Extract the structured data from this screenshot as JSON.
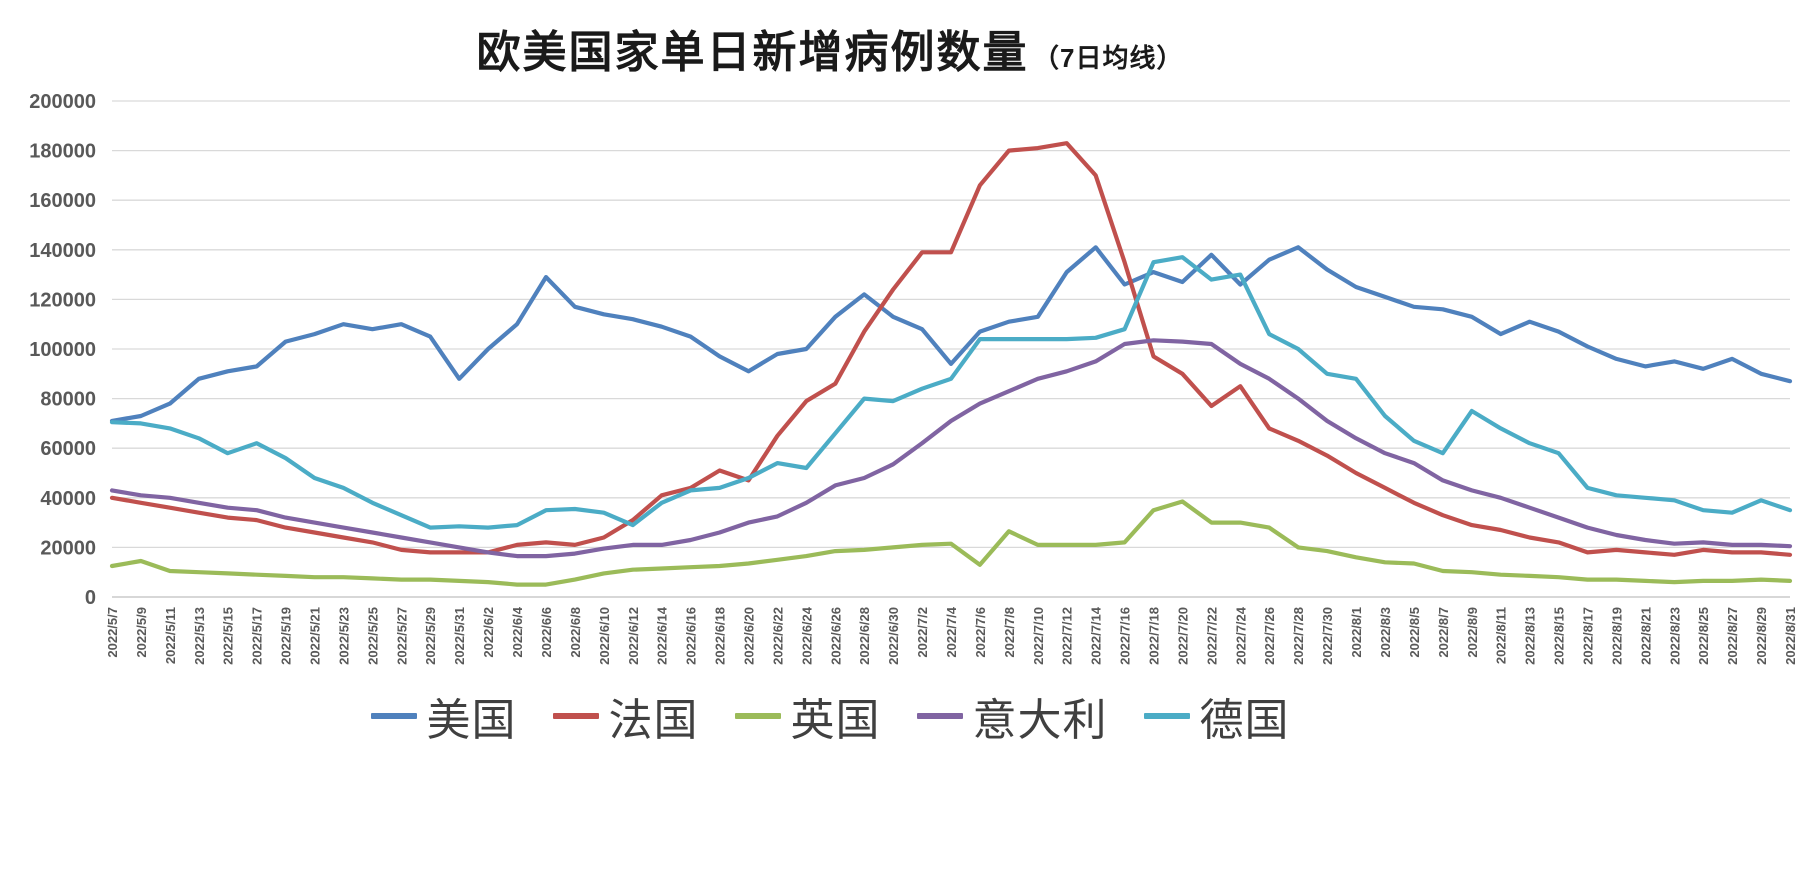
{
  "chart_data": {
    "type": "line",
    "title": "欧美国家单日新增病例数量",
    "subtitle": "（7日均线）",
    "ylim": [
      0,
      200000
    ],
    "ytick_step": 20000,
    "grid": true,
    "legend_position": "bottom",
    "gridline_color": "#D9D9D9",
    "axis_line_color": "#BFBFBF",
    "axis_label_color": "#595959",
    "categories": [
      "2022/5/7",
      "2022/5/9",
      "2022/5/11",
      "2022/5/13",
      "2022/5/15",
      "2022/5/17",
      "2022/5/19",
      "2022/5/21",
      "2022/5/23",
      "2022/5/25",
      "2022/5/27",
      "2022/5/29",
      "2022/5/31",
      "2022/6/2",
      "2022/6/4",
      "2022/6/6",
      "2022/6/8",
      "2022/6/10",
      "2022/6/12",
      "2022/6/14",
      "2022/6/16",
      "2022/6/18",
      "2022/6/20",
      "2022/6/22",
      "2022/6/24",
      "2022/6/26",
      "2022/6/28",
      "2022/6/30",
      "2022/7/2",
      "2022/7/4",
      "2022/7/6",
      "2022/7/8",
      "2022/7/10",
      "2022/7/12",
      "2022/7/14",
      "2022/7/16",
      "2022/7/18",
      "2022/7/20",
      "2022/7/22",
      "2022/7/24",
      "2022/7/26",
      "2022/7/28",
      "2022/7/30",
      "2022/8/1",
      "2022/8/3",
      "2022/8/5",
      "2022/8/7",
      "2022/8/9",
      "2022/8/11",
      "2022/8/13",
      "2022/8/15",
      "2022/8/17",
      "2022/8/19",
      "2022/8/21",
      "2022/8/23",
      "2022/8/25",
      "2022/8/27",
      "2022/8/29",
      "2022/8/31"
    ],
    "series": [
      {
        "name": "美国",
        "color": "#4F81BD",
        "values": [
          71000,
          73000,
          78000,
          88000,
          91000,
          93000,
          103000,
          106000,
          110000,
          108000,
          110000,
          105000,
          88000,
          100000,
          110000,
          129000,
          117000,
          114000,
          112000,
          109000,
          105000,
          97000,
          91000,
          98000,
          100000,
          113000,
          122000,
          113000,
          108000,
          94000,
          107000,
          111000,
          113000,
          131000,
          141000,
          126000,
          131000,
          127000,
          138000,
          126000,
          136000,
          141000,
          132000,
          125000,
          121000,
          117000,
          116000,
          113000,
          106000,
          111000,
          107000,
          101000,
          96000,
          93000,
          95000,
          92000,
          96000,
          90000,
          87000
        ]
      },
      {
        "name": "法国",
        "color": "#C0504D",
        "values": [
          40000,
          38000,
          36000,
          34000,
          32000,
          31000,
          28000,
          26000,
          24000,
          22000,
          19000,
          18000,
          18000,
          18000,
          21000,
          22000,
          21000,
          24000,
          31000,
          41000,
          44000,
          51000,
          47000,
          65000,
          79000,
          86000,
          107000,
          124000,
          139000,
          139000,
          166000,
          180000,
          181000,
          183000,
          170000,
          135000,
          97000,
          90000,
          77000,
          85000,
          68000,
          63000,
          57000,
          50000,
          44000,
          38000,
          33000,
          29000,
          27000,
          24000,
          22000,
          18000,
          19000,
          18000,
          17000,
          19000,
          18000,
          18000,
          17000
        ]
      },
      {
        "name": "英国",
        "color": "#9BBB59",
        "values": [
          12500,
          14500,
          10500,
          10000,
          9500,
          9000,
          8500,
          8000,
          8000,
          7500,
          7000,
          7000,
          6500,
          6000,
          5000,
          5000,
          7000,
          9500,
          11000,
          11500,
          12000,
          12500,
          13500,
          15000,
          16500,
          18500,
          19000,
          20000,
          21000,
          21500,
          13000,
          26500,
          21000,
          21000,
          21000,
          22000,
          35000,
          38500,
          30000,
          30000,
          28000,
          20000,
          18500,
          16000,
          14000,
          13500,
          10500,
          10000,
          9000,
          8500,
          8000,
          7000,
          7000,
          6500,
          6000,
          6500,
          6500,
          7000,
          6500
        ]
      },
      {
        "name": "意大利",
        "color": "#8064A2",
        "values": [
          43000,
          41000,
          40000,
          38000,
          36000,
          35000,
          32000,
          30000,
          28000,
          26000,
          24000,
          22000,
          20000,
          18000,
          16500,
          16500,
          17500,
          19500,
          21000,
          21000,
          23000,
          26000,
          30000,
          32500,
          38000,
          45000,
          48000,
          53500,
          62000,
          71000,
          78000,
          83000,
          88000,
          91000,
          95000,
          102000,
          103500,
          103000,
          102000,
          94000,
          88000,
          80000,
          71000,
          64000,
          58000,
          54000,
          47000,
          43000,
          40000,
          36000,
          32000,
          28000,
          25000,
          23000,
          21500,
          22000,
          21000,
          21000,
          20500
        ]
      },
      {
        "name": "德国",
        "color": "#4BACC6",
        "values": [
          70500,
          70000,
          68000,
          64000,
          58000,
          62000,
          56000,
          48000,
          44000,
          38000,
          33000,
          28000,
          28500,
          28000,
          29000,
          35000,
          35500,
          34000,
          29000,
          38000,
          43000,
          44000,
          48000,
          54000,
          52000,
          66000,
          80000,
          79000,
          84000,
          88000,
          104000,
          104000,
          104000,
          104000,
          104500,
          108000,
          135000,
          137000,
          128000,
          130000,
          106000,
          100000,
          90000,
          88000,
          73000,
          63000,
          58000,
          75000,
          68000,
          62000,
          58000,
          44000,
          41000,
          40000,
          39000,
          35000,
          34000,
          39000,
          35000
        ]
      }
    ]
  }
}
